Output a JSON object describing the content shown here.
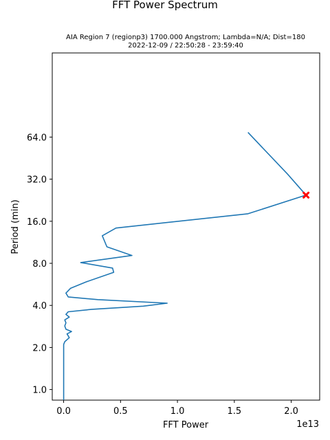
{
  "chart_data": {
    "type": "line",
    "title": "FFT Power Spectrum",
    "subtitle_lines": [
      "AIA Region 7 (regionp3) 1700.000 Angstrom; Lambda=N/A; Dist=180",
      "2022-12-09 / 22:50:28 - 23:59:40"
    ],
    "xlabel": "FFT Power",
    "ylabel": "Period (min)",
    "x_offset_label": "1e13",
    "x_scale_exponent": 13,
    "y_scale": "log2",
    "xlim": [
      -0.1,
      2.25
    ],
    "ylim": [
      0.84,
      256
    ],
    "x_ticks": [
      0.0,
      0.5,
      1.0,
      1.5,
      2.0
    ],
    "x_tick_labels": [
      "0.0",
      "0.5",
      "1.0",
      "1.5",
      "2.0"
    ],
    "y_ticks": [
      1,
      2,
      4,
      8,
      16,
      32,
      64
    ],
    "y_tick_labels": [
      "1.0",
      "2.0",
      "4.0",
      "8.0",
      "16.0",
      "32.0",
      "64.0"
    ],
    "series": [
      {
        "color": "#1f77b4",
        "points": [
          [
            1.62,
            69.1
          ],
          [
            1.97,
            34.6
          ],
          [
            2.13,
            24.6
          ],
          [
            1.62,
            18.1
          ],
          [
            0.46,
            14.3
          ],
          [
            0.34,
            12.6
          ],
          [
            0.38,
            10.5
          ],
          [
            0.6,
            9.1
          ],
          [
            0.15,
            8.1
          ],
          [
            0.43,
            7.4
          ],
          [
            0.44,
            6.9
          ],
          [
            0.2,
            5.9
          ],
          [
            0.06,
            5.3
          ],
          [
            0.02,
            4.9
          ],
          [
            0.04,
            4.6
          ],
          [
            0.3,
            4.4
          ],
          [
            0.91,
            4.15
          ],
          [
            0.7,
            3.95
          ],
          [
            0.25,
            3.75
          ],
          [
            0.04,
            3.6
          ],
          [
            0.02,
            3.45
          ],
          [
            0.05,
            3.3
          ],
          [
            0.01,
            3.15
          ],
          [
            0.02,
            3.0
          ],
          [
            0.01,
            2.85
          ],
          [
            0.02,
            2.7
          ],
          [
            0.07,
            2.6
          ],
          [
            0.03,
            2.5
          ],
          [
            0.05,
            2.35
          ],
          [
            0.01,
            2.2
          ],
          [
            0.0,
            2.1
          ],
          [
            0.0,
            1.0
          ],
          [
            0.0,
            0.84
          ]
        ]
      }
    ],
    "peak_marker": {
      "x": 2.13,
      "y": 24.6,
      "color": "#ff0000",
      "shape": "x"
    },
    "grid": false
  }
}
